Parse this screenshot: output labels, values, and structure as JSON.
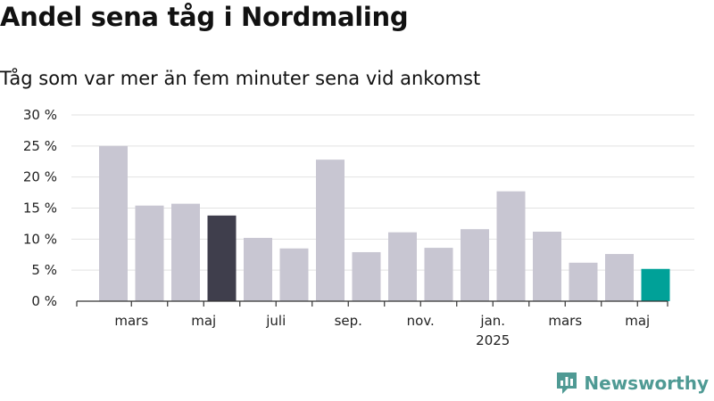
{
  "title": "Andel sena tåg i Nordmaling",
  "subtitle": "Tåg som var mer än fem minuter sena vid ankomst",
  "brand": {
    "name": "Newsworthy",
    "icon": "newsworthy-logo-icon",
    "color": "#4f9a94"
  },
  "colors": {
    "bar": "#c8c6d2",
    "highlight_dark": "#3f3e4c",
    "highlight_latest": "#00a198",
    "grid": "#e2e2e2",
    "axis": "#333333"
  },
  "chart_data": {
    "type": "bar",
    "title": "Andel sena tåg i Nordmaling",
    "subtitle": "Tåg som var mer än fem minuter sena vid ankomst",
    "xlabel": "",
    "ylabel": "",
    "ylim": [
      0,
      30
    ],
    "yticks": [
      0,
      5,
      10,
      15,
      20,
      25,
      30
    ],
    "ytick_labels": [
      "0 %",
      "5 %",
      "10 %",
      "15 %",
      "20 %",
      "25 %",
      "30 %"
    ],
    "grid": true,
    "categories": [
      "2024-02",
      "2024-03",
      "2024-04",
      "2024-05",
      "2024-06",
      "2024-07",
      "2024-08",
      "2024-09",
      "2024-10",
      "2024-11",
      "2024-12",
      "2025-01",
      "2025-02",
      "2025-03",
      "2025-04",
      "2025-05"
    ],
    "values": [
      25.0,
      15.4,
      15.7,
      13.8,
      10.2,
      8.5,
      22.8,
      7.9,
      11.1,
      8.6,
      11.6,
      17.7,
      11.2,
      6.2,
      7.6,
      5.2
    ],
    "highlight": {
      "2024-05": "dark",
      "2025-05": "latest"
    },
    "x_tick_labels": [
      {
        "category": "2024-03",
        "label": "mars",
        "sub": ""
      },
      {
        "category": "2024-05",
        "label": "maj",
        "sub": ""
      },
      {
        "category": "2024-07",
        "label": "juli",
        "sub": ""
      },
      {
        "category": "2024-09",
        "label": "sep.",
        "sub": ""
      },
      {
        "category": "2024-11",
        "label": "nov.",
        "sub": ""
      },
      {
        "category": "2025-01",
        "label": "jan.",
        "sub": "2025"
      },
      {
        "category": "2025-03",
        "label": "mars",
        "sub": ""
      },
      {
        "category": "2025-05",
        "label": "maj",
        "sub": ""
      }
    ]
  }
}
